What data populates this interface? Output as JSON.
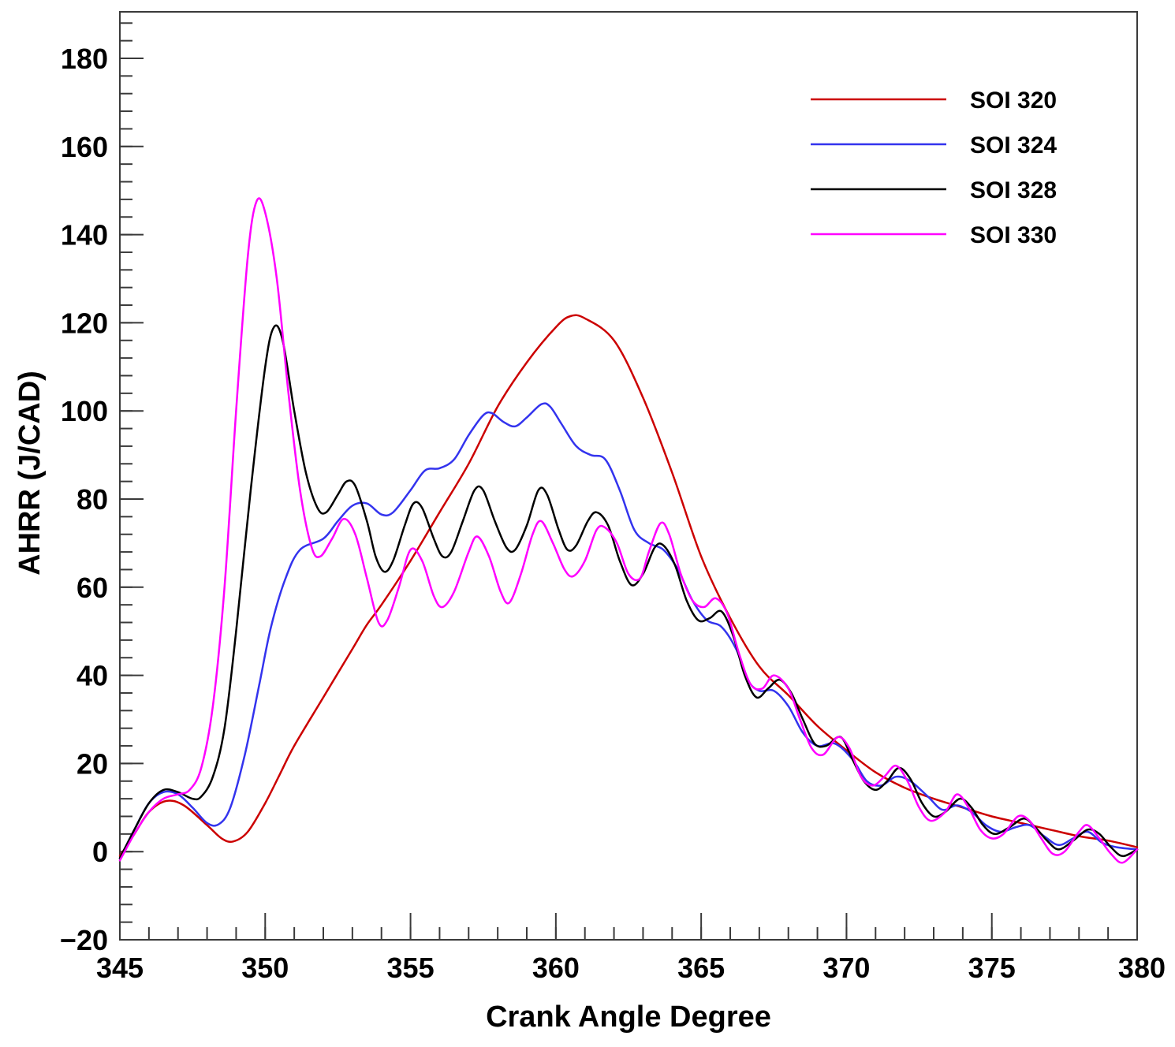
{
  "chart_data": {
    "type": "line",
    "title": "",
    "xlabel": "Crank Angle Degree",
    "ylabel": "AHRR (J/CAD)",
    "xlim": [
      345,
      380
    ],
    "ylim": [
      -20,
      190
    ],
    "x_ticks": [
      345,
      350,
      355,
      360,
      365,
      370,
      375,
      380
    ],
    "x_tick_labels": [
      "345",
      "350",
      "355",
      "360",
      "365",
      "370",
      "375",
      "380"
    ],
    "y_ticks": [
      -20,
      0,
      20,
      40,
      60,
      80,
      100,
      120,
      140,
      160,
      180
    ],
    "y_tick_labels": [
      "−20",
      "0",
      "20",
      "40",
      "60",
      "80",
      "100",
      "120",
      "140",
      "160",
      "180"
    ],
    "x_minor_step": 1,
    "y_minor_step": 4,
    "grid": false,
    "legend_position": "top-right",
    "series": [
      {
        "name": "SOI 320",
        "color": "#cc0000",
        "points": [
          [
            345,
            -1
          ],
          [
            345.5,
            4
          ],
          [
            346,
            9
          ],
          [
            346.6,
            11.5
          ],
          [
            347.2,
            10.5
          ],
          [
            348,
            6
          ],
          [
            348.5,
            3
          ],
          [
            348.9,
            2.3
          ],
          [
            349.4,
            4.5
          ],
          [
            350,
            11
          ],
          [
            350.5,
            17.5
          ],
          [
            351,
            24
          ],
          [
            352,
            35
          ],
          [
            353,
            46
          ],
          [
            353.5,
            51.5
          ],
          [
            354,
            56
          ],
          [
            355,
            66
          ],
          [
            356,
            77
          ],
          [
            357,
            88
          ],
          [
            358,
            101
          ],
          [
            359,
            111
          ],
          [
            360,
            119
          ],
          [
            360.5,
            121.5
          ],
          [
            361,
            121
          ],
          [
            362,
            116
          ],
          [
            363,
            103
          ],
          [
            364,
            86
          ],
          [
            365,
            67
          ],
          [
            366,
            53
          ],
          [
            367,
            42
          ],
          [
            368,
            35.5
          ],
          [
            369,
            28.5
          ],
          [
            370,
            23
          ],
          [
            371,
            18
          ],
          [
            372,
            14.5
          ],
          [
            373,
            12
          ],
          [
            374,
            10
          ],
          [
            375,
            8
          ],
          [
            376,
            6.5
          ],
          [
            377,
            5
          ],
          [
            378,
            3.5
          ],
          [
            379,
            2.5
          ],
          [
            380,
            1
          ]
        ]
      },
      {
        "name": "SOI 324",
        "color": "#3333ee",
        "points": [
          [
            345,
            -1.5
          ],
          [
            345.5,
            5
          ],
          [
            346,
            11
          ],
          [
            346.5,
            13.5
          ],
          [
            347,
            13
          ],
          [
            347.5,
            10
          ],
          [
            348,
            6.5
          ],
          [
            348.4,
            6.2
          ],
          [
            348.8,
            10
          ],
          [
            349.3,
            22
          ],
          [
            349.8,
            38
          ],
          [
            350.2,
            51
          ],
          [
            350.7,
            62
          ],
          [
            351.2,
            68.5
          ],
          [
            352,
            71
          ],
          [
            352.5,
            75
          ],
          [
            353,
            78.5
          ],
          [
            353.5,
            79
          ],
          [
            354,
            76.5
          ],
          [
            354.4,
            77
          ],
          [
            355,
            82
          ],
          [
            355.5,
            86.5
          ],
          [
            356,
            87
          ],
          [
            356.5,
            89
          ],
          [
            357,
            94.5
          ],
          [
            357.5,
            99
          ],
          [
            357.8,
            99.5
          ],
          [
            358.2,
            97.5
          ],
          [
            358.6,
            96.5
          ],
          [
            359,
            98.5
          ],
          [
            359.5,
            101.5
          ],
          [
            359.8,
            101
          ],
          [
            360.2,
            97
          ],
          [
            360.7,
            92
          ],
          [
            361.2,
            90
          ],
          [
            361.7,
            89
          ],
          [
            362.2,
            82
          ],
          [
            362.7,
            73
          ],
          [
            363.2,
            70
          ],
          [
            363.7,
            68.5
          ],
          [
            364.2,
            64
          ],
          [
            364.7,
            57
          ],
          [
            365.2,
            52.5
          ],
          [
            365.7,
            51
          ],
          [
            366.2,
            46
          ],
          [
            366.6,
            39
          ],
          [
            367,
            36.5
          ],
          [
            367.5,
            36.5
          ],
          [
            368,
            33
          ],
          [
            368.5,
            27
          ],
          [
            369,
            24
          ],
          [
            369.6,
            24.5
          ],
          [
            370.2,
            21
          ],
          [
            370.7,
            16
          ],
          [
            371.2,
            15
          ],
          [
            371.7,
            17
          ],
          [
            372.2,
            16
          ],
          [
            372.8,
            12.5
          ],
          [
            373.3,
            9.5
          ],
          [
            373.8,
            10.5
          ],
          [
            374.3,
            9
          ],
          [
            374.8,
            6
          ],
          [
            375.3,
            4.5
          ],
          [
            375.8,
            5.5
          ],
          [
            376.3,
            6
          ],
          [
            376.8,
            3.5
          ],
          [
            377.3,
            1.5
          ],
          [
            377.8,
            3
          ],
          [
            378.3,
            4.5
          ],
          [
            378.8,
            2
          ],
          [
            379.3,
            1
          ],
          [
            380,
            0.5
          ]
        ]
      },
      {
        "name": "SOI 328",
        "color": "#000000",
        "points": [
          [
            345,
            -1.5
          ],
          [
            345.5,
            5
          ],
          [
            346,
            11
          ],
          [
            346.5,
            14
          ],
          [
            347,
            13.5
          ],
          [
            347.5,
            12
          ],
          [
            347.8,
            12.5
          ],
          [
            348.2,
            17
          ],
          [
            348.6,
            28
          ],
          [
            349,
            50
          ],
          [
            349.5,
            82
          ],
          [
            350,
            110
          ],
          [
            350.3,
            119
          ],
          [
            350.6,
            116
          ],
          [
            351,
            100
          ],
          [
            351.4,
            86
          ],
          [
            351.8,
            78
          ],
          [
            352.1,
            77
          ],
          [
            352.5,
            81
          ],
          [
            352.8,
            84
          ],
          [
            353.1,
            83
          ],
          [
            353.5,
            75
          ],
          [
            353.8,
            67
          ],
          [
            354.1,
            63.5
          ],
          [
            354.4,
            66
          ],
          [
            354.8,
            74
          ],
          [
            355.1,
            79
          ],
          [
            355.4,
            78
          ],
          [
            355.8,
            71
          ],
          [
            356.1,
            67
          ],
          [
            356.4,
            68
          ],
          [
            356.8,
            75
          ],
          [
            357.2,
            82
          ],
          [
            357.5,
            82
          ],
          [
            357.9,
            75
          ],
          [
            358.3,
            69
          ],
          [
            358.6,
            68.5
          ],
          [
            359,
            74
          ],
          [
            359.4,
            82
          ],
          [
            359.7,
            81
          ],
          [
            360.1,
            73
          ],
          [
            360.4,
            68.5
          ],
          [
            360.7,
            69.5
          ],
          [
            361.1,
            75
          ],
          [
            361.4,
            77
          ],
          [
            361.8,
            74
          ],
          [
            362.2,
            66
          ],
          [
            362.6,
            60.5
          ],
          [
            363,
            63
          ],
          [
            363.4,
            69
          ],
          [
            363.7,
            69.5
          ],
          [
            364.1,
            65
          ],
          [
            364.5,
            57
          ],
          [
            364.9,
            52.5
          ],
          [
            365.3,
            53
          ],
          [
            365.7,
            54.5
          ],
          [
            366.1,
            49
          ],
          [
            366.5,
            40
          ],
          [
            366.9,
            35
          ],
          [
            367.3,
            37
          ],
          [
            367.7,
            39
          ],
          [
            368.1,
            36
          ],
          [
            368.5,
            30
          ],
          [
            368.9,
            24.5
          ],
          [
            369.3,
            24
          ],
          [
            369.8,
            26
          ],
          [
            370.2,
            21
          ],
          [
            370.6,
            16
          ],
          [
            371,
            14
          ],
          [
            371.4,
            16
          ],
          [
            371.8,
            19
          ],
          [
            372.2,
            16.5
          ],
          [
            372.6,
            11
          ],
          [
            373,
            8
          ],
          [
            373.4,
            9
          ],
          [
            373.9,
            12
          ],
          [
            374.3,
            10
          ],
          [
            374.7,
            6
          ],
          [
            375.1,
            4
          ],
          [
            375.6,
            5.5
          ],
          [
            376.1,
            7.5
          ],
          [
            376.5,
            5.5
          ],
          [
            376.9,
            2.5
          ],
          [
            377.3,
            0.5
          ],
          [
            377.8,
            2.5
          ],
          [
            378.3,
            5
          ],
          [
            378.7,
            4
          ],
          [
            379.1,
            1
          ],
          [
            379.5,
            -1
          ],
          [
            380,
            0.5
          ]
        ]
      },
      {
        "name": "SOI 330",
        "color": "#ff00ff",
        "points": [
          [
            345,
            -2
          ],
          [
            345.5,
            4
          ],
          [
            346,
            9
          ],
          [
            346.5,
            12
          ],
          [
            347,
            13
          ],
          [
            347.4,
            14
          ],
          [
            347.8,
            19
          ],
          [
            348.2,
            33
          ],
          [
            348.6,
            60
          ],
          [
            349,
            100
          ],
          [
            349.4,
            135
          ],
          [
            349.7,
            147.5
          ],
          [
            350,
            145
          ],
          [
            350.4,
            130
          ],
          [
            350.8,
            104
          ],
          [
            351.2,
            82
          ],
          [
            351.6,
            69
          ],
          [
            351.9,
            67
          ],
          [
            352.3,
            71
          ],
          [
            352.7,
            75.5
          ],
          [
            353.1,
            72
          ],
          [
            353.5,
            62
          ],
          [
            353.9,
            52
          ],
          [
            354.2,
            52.5
          ],
          [
            354.6,
            60
          ],
          [
            355,
            68.5
          ],
          [
            355.4,
            66
          ],
          [
            355.8,
            58
          ],
          [
            356.1,
            55.5
          ],
          [
            356.5,
            59
          ],
          [
            357,
            68
          ],
          [
            357.3,
            71.5
          ],
          [
            357.7,
            67
          ],
          [
            358.1,
            59
          ],
          [
            358.4,
            56.5
          ],
          [
            358.8,
            63
          ],
          [
            359.2,
            72
          ],
          [
            359.5,
            75
          ],
          [
            359.9,
            70
          ],
          [
            360.3,
            64
          ],
          [
            360.6,
            62.5
          ],
          [
            361,
            66
          ],
          [
            361.4,
            73
          ],
          [
            361.7,
            73.5
          ],
          [
            362.1,
            70
          ],
          [
            362.5,
            63
          ],
          [
            362.9,
            62
          ],
          [
            363.2,
            68
          ],
          [
            363.6,
            74.5
          ],
          [
            363.9,
            72
          ],
          [
            364.3,
            63
          ],
          [
            364.7,
            57
          ],
          [
            365.1,
            55.5
          ],
          [
            365.5,
            57.5
          ],
          [
            365.9,
            54
          ],
          [
            366.3,
            45
          ],
          [
            366.7,
            38
          ],
          [
            367.1,
            37
          ],
          [
            367.5,
            40
          ],
          [
            368,
            37
          ],
          [
            368.4,
            30
          ],
          [
            368.8,
            23.5
          ],
          [
            369.2,
            22
          ],
          [
            369.7,
            26
          ],
          [
            370.1,
            23.5
          ],
          [
            370.5,
            17
          ],
          [
            370.9,
            15
          ],
          [
            371.3,
            17
          ],
          [
            371.7,
            19.5
          ],
          [
            372.1,
            16
          ],
          [
            372.5,
            10
          ],
          [
            372.9,
            7
          ],
          [
            373.4,
            9
          ],
          [
            373.8,
            13
          ],
          [
            374.2,
            10
          ],
          [
            374.6,
            5
          ],
          [
            375,
            3
          ],
          [
            375.4,
            4
          ],
          [
            375.9,
            8
          ],
          [
            376.3,
            7
          ],
          [
            376.7,
            3
          ],
          [
            377.1,
            -0.5
          ],
          [
            377.5,
            0
          ],
          [
            378,
            4.5
          ],
          [
            378.3,
            6
          ],
          [
            378.7,
            3
          ],
          [
            379.1,
            -0.5
          ],
          [
            379.5,
            -2.5
          ],
          [
            380,
            0.5
          ]
        ]
      }
    ]
  }
}
